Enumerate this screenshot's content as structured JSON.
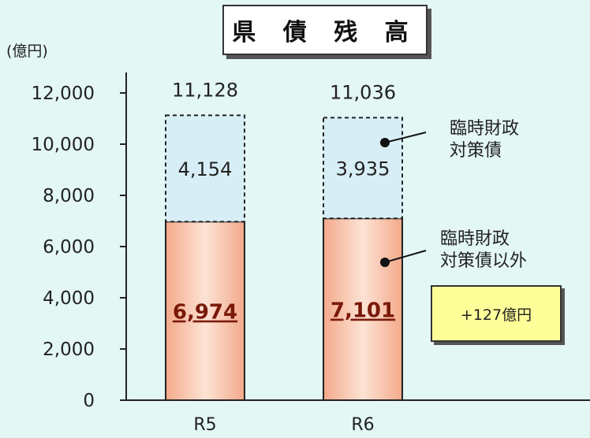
{
  "title": "県 債 残 高",
  "unit_label": "(億円)",
  "legend": {
    "rinji": "臨時財政\n対策債",
    "other": "臨時財政\n対策債以外"
  },
  "difference_label": "+127億円",
  "colors": {
    "background": "#e3f7f5",
    "rinji_fill": "#d8eef6",
    "other_fill_light": "#fde3d5",
    "other_fill_dark": "#f3a98a",
    "axis": "#222222"
  },
  "chart_data": {
    "type": "bar",
    "stacked": true,
    "categories": [
      "R5",
      "R6"
    ],
    "series": [
      {
        "key": "other",
        "values": [
          6974,
          7101
        ],
        "labels": [
          "6,974",
          "7,101"
        ]
      },
      {
        "key": "rinji",
        "values": [
          4154,
          3935
        ],
        "labels": [
          "4,154",
          "3,935"
        ]
      }
    ],
    "totals": [
      11128,
      11036
    ],
    "total_labels": [
      "11,128",
      "11,036"
    ],
    "yticks": [
      0,
      2000,
      4000,
      6000,
      8000,
      10000,
      12000
    ],
    "ytick_labels": [
      "0",
      "2,000",
      "4,000",
      "6,000",
      "8,000",
      "10,000",
      "12,000"
    ],
    "ylim": [
      0,
      12000
    ]
  }
}
